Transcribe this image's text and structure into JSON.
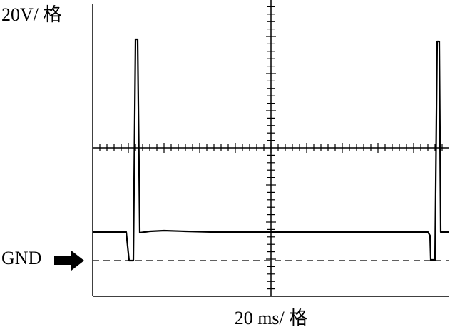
{
  "labels": {
    "vertical_scale": "20V/ 格",
    "ground": "GND",
    "time_scale": "20 ms/ 格"
  }
}
